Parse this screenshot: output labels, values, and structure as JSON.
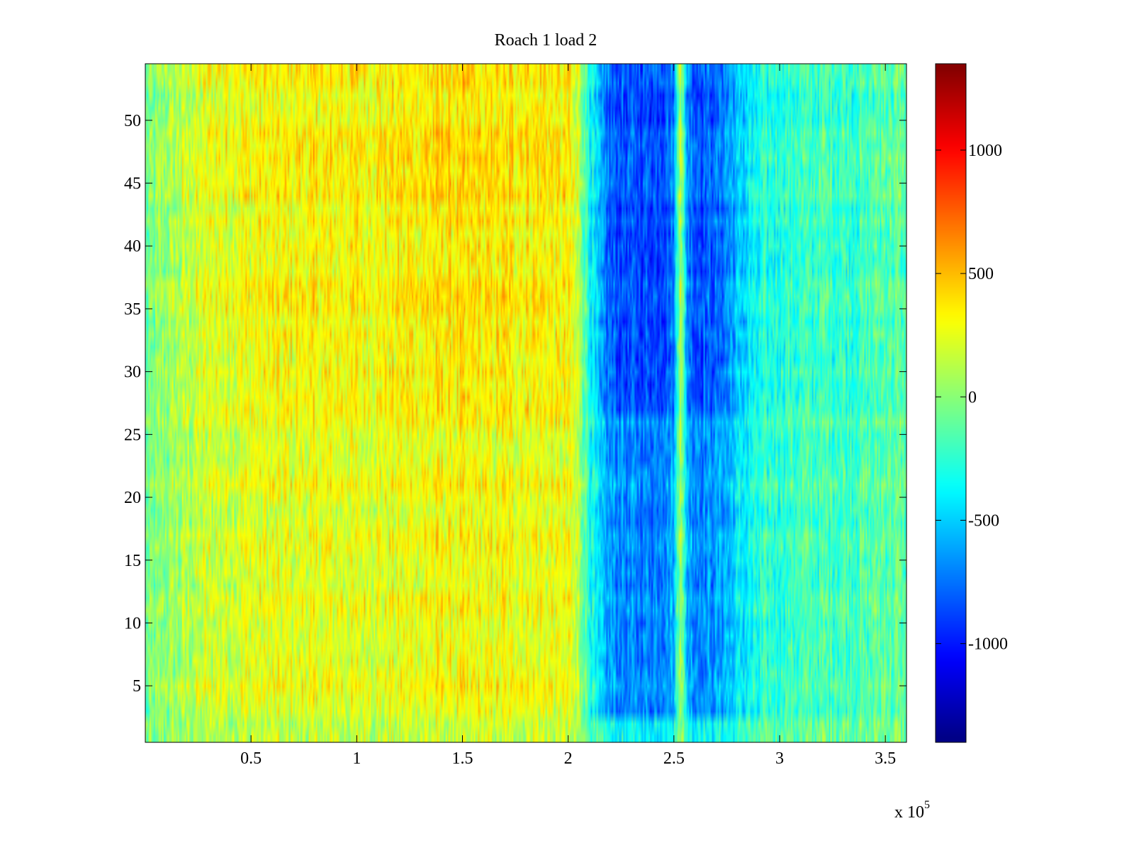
{
  "chart_data": {
    "type": "heatmap",
    "title": "Roach 1 load 2",
    "xlabel": "",
    "ylabel": "",
    "x_multiplier_label": "x 10",
    "x_multiplier_exponent": "5",
    "xlim": [
      0,
      3.6
    ],
    "ylim": [
      0.5,
      54.5
    ],
    "x_ticks": [
      0.5,
      1,
      1.5,
      2,
      2.5,
      3,
      3.5
    ],
    "x_tick_labels": [
      "0.5",
      "1",
      "1.5",
      "2",
      "2.5",
      "3",
      "3.5"
    ],
    "y_ticks": [
      5,
      10,
      15,
      20,
      25,
      30,
      35,
      40,
      45,
      50
    ],
    "y_tick_labels": [
      "5",
      "10",
      "15",
      "20",
      "25",
      "30",
      "35",
      "40",
      "45",
      "50"
    ],
    "rows": 54,
    "colormap": "jet",
    "clim": [
      -1400,
      1350
    ],
    "colorbar_ticks": [
      -1000,
      -500,
      0,
      500,
      1000
    ],
    "colorbar_tick_labels": [
      "-1000",
      "-500",
      "0",
      "500",
      "1000"
    ],
    "column_profile_x": [
      0,
      0.1,
      0.3,
      0.5,
      0.8,
      1.0,
      1.2,
      1.4,
      1.6,
      1.8,
      2.0,
      2.05,
      2.1,
      2.15,
      2.2,
      2.3,
      2.4,
      2.5,
      2.53,
      2.56,
      2.6,
      2.7,
      2.8,
      2.9,
      3.0,
      3.2,
      3.4,
      3.5,
      3.6
    ],
    "column_profile_value": [
      -100,
      50,
      250,
      300,
      320,
      330,
      340,
      380,
      360,
      370,
      320,
      150,
      -300,
      -650,
      -800,
      -850,
      -850,
      -750,
      250,
      -650,
      -800,
      -800,
      -550,
      -350,
      -250,
      -200,
      -200,
      -100,
      -150
    ],
    "row_strength": {
      "low_rows_upto": 2,
      "low": 0.45,
      "mid_upto": 26,
      "mid": 0.8,
      "high": 1.0
    },
    "noise_amplitude": 350,
    "grid": false,
    "colorbar_position": "right"
  }
}
